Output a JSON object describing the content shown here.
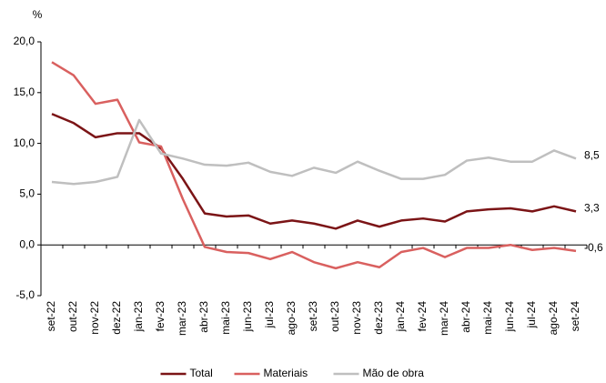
{
  "chart_data": {
    "type": "line",
    "y_label": "%",
    "categories": [
      "set-22",
      "out-22",
      "nov-22",
      "dez-22",
      "jan-23",
      "fev-23",
      "mar-23",
      "abr-23",
      "mai-23",
      "jun-23",
      "jul-23",
      "ago-23",
      "set-23",
      "out-23",
      "nov-23",
      "dez-23",
      "jan-24",
      "fev-24",
      "mar-24",
      "abr-24",
      "mai-24",
      "jun-24",
      "jul-24",
      "ago-24",
      "set-24"
    ],
    "series": [
      {
        "name": "Total",
        "color": "#7b1416",
        "values": [
          12.9,
          12.0,
          10.6,
          11.0,
          11.0,
          9.5,
          6.5,
          3.1,
          2.8,
          2.9,
          2.1,
          2.4,
          2.1,
          1.6,
          2.4,
          1.8,
          2.4,
          2.6,
          2.3,
          3.3,
          3.5,
          3.6,
          3.3,
          3.8,
          3.3
        ],
        "value_labels": [
          null,
          null,
          null,
          null,
          null,
          null,
          null,
          null,
          null,
          null,
          null,
          null,
          null,
          null,
          null,
          null,
          null,
          null,
          null,
          null,
          null,
          null,
          null,
          null,
          "3,3"
        ]
      },
      {
        "name": "Materiais",
        "color": "#d9605f",
        "values": [
          18.0,
          16.7,
          13.9,
          14.3,
          10.1,
          9.7,
          4.5,
          -0.2,
          -0.7,
          -0.8,
          -1.4,
          -0.7,
          -1.7,
          -2.3,
          -1.7,
          -2.2,
          -0.7,
          -0.3,
          -1.2,
          -0.3,
          -0.3,
          0.0,
          -0.5,
          -0.3,
          -0.6
        ],
        "value_labels": [
          null,
          null,
          null,
          null,
          null,
          null,
          null,
          null,
          null,
          null,
          null,
          null,
          null,
          null,
          null,
          null,
          null,
          null,
          null,
          null,
          null,
          null,
          null,
          null,
          "-0,6"
        ]
      },
      {
        "name": "Mão de obra",
        "color": "#bfbfbf",
        "values": [
          6.2,
          6.0,
          6.2,
          6.7,
          12.3,
          9.0,
          8.5,
          7.9,
          7.8,
          8.1,
          7.2,
          6.8,
          7.6,
          7.1,
          8.2,
          7.3,
          6.5,
          6.5,
          6.9,
          8.3,
          8.6,
          8.2,
          8.2,
          9.3,
          8.5
        ],
        "value_labels": [
          null,
          null,
          null,
          null,
          null,
          null,
          null,
          null,
          null,
          null,
          null,
          null,
          null,
          null,
          null,
          null,
          null,
          null,
          null,
          null,
          null,
          null,
          null,
          null,
          "8,5"
        ]
      }
    ],
    "ylim": [
      -5,
      20
    ],
    "yticks": [
      {
        "value": -5,
        "label": "-5,0"
      },
      {
        "value": 0,
        "label": "0,0"
      },
      {
        "value": 5,
        "label": "5,0"
      },
      {
        "value": 10,
        "label": "10,0"
      },
      {
        "value": 15,
        "label": "15,0"
      },
      {
        "value": 20,
        "label": "20,0"
      }
    ],
    "grid": false,
    "legend": "bottom"
  }
}
